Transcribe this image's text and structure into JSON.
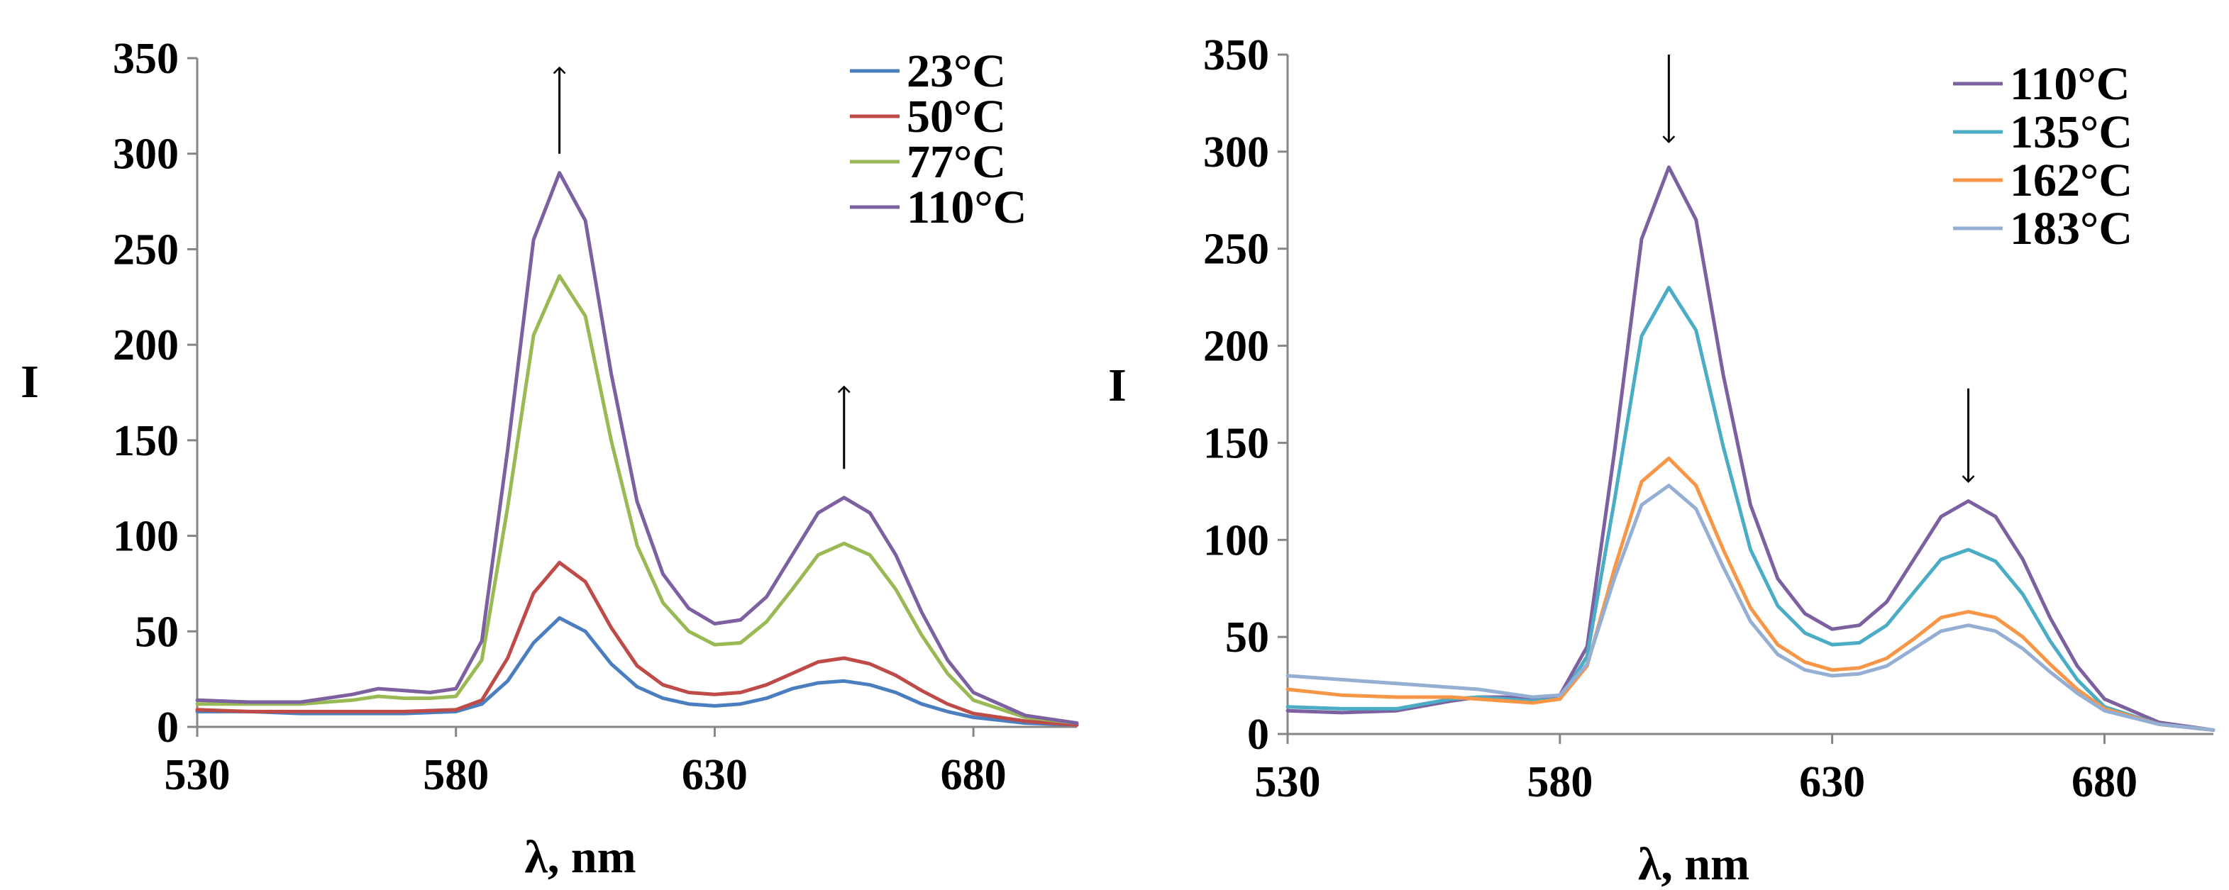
{
  "chart_data": [
    {
      "type": "line",
      "xlabel": "λ, nm",
      "ylabel": "I",
      "xlim": [
        530,
        700
      ],
      "ylim": [
        0,
        350
      ],
      "xticks": [
        530,
        580,
        630,
        680
      ],
      "yticks": [
        0,
        50,
        100,
        150,
        200,
        250,
        300,
        350
      ],
      "legend_position": "top-right",
      "arrow_direction": "up",
      "arrows": [
        {
          "x": 600,
          "y_from": 300,
          "y_to": 345
        },
        {
          "x": 655,
          "y_from": 135,
          "y_to": 178
        }
      ],
      "series": [
        {
          "name": "23°C",
          "color": "#4a7ebf",
          "x": [
            530,
            540,
            550,
            560,
            570,
            580,
            585,
            590,
            595,
            600,
            605,
            610,
            615,
            620,
            625,
            630,
            635,
            640,
            645,
            650,
            655,
            660,
            665,
            670,
            675,
            680,
            690,
            700
          ],
          "y": [
            8,
            8,
            7,
            7,
            7,
            8,
            12,
            24,
            44,
            57,
            50,
            33,
            21,
            15,
            12,
            11,
            12,
            15,
            20,
            23,
            24,
            22,
            18,
            12,
            8,
            5,
            2,
            1
          ]
        },
        {
          "name": "50°C",
          "color": "#be4b48",
          "x": [
            530,
            540,
            550,
            560,
            570,
            580,
            585,
            590,
            595,
            600,
            605,
            610,
            615,
            620,
            625,
            630,
            635,
            640,
            645,
            650,
            655,
            660,
            665,
            670,
            675,
            680,
            690,
            700
          ],
          "y": [
            9,
            8,
            8,
            8,
            8,
            9,
            14,
            36,
            70,
            86,
            76,
            52,
            32,
            22,
            18,
            17,
            18,
            22,
            28,
            34,
            36,
            33,
            27,
            19,
            12,
            7,
            3,
            1
          ]
        },
        {
          "name": "77°C",
          "color": "#98b954",
          "x": [
            530,
            540,
            550,
            560,
            565,
            570,
            575,
            580,
            585,
            590,
            595,
            600,
            605,
            610,
            615,
            620,
            625,
            630,
            635,
            640,
            645,
            650,
            655,
            660,
            665,
            670,
            675,
            680,
            690,
            700
          ],
          "y": [
            12,
            12,
            12,
            14,
            16,
            15,
            15,
            16,
            35,
            115,
            205,
            236,
            215,
            150,
            95,
            65,
            50,
            43,
            44,
            55,
            72,
            90,
            96,
            90,
            72,
            48,
            28,
            14,
            5,
            2
          ]
        },
        {
          "name": "110°C",
          "color": "#7d60a0",
          "x": [
            530,
            540,
            550,
            560,
            565,
            570,
            575,
            580,
            585,
            590,
            595,
            600,
            605,
            610,
            615,
            620,
            625,
            630,
            635,
            640,
            645,
            650,
            655,
            660,
            665,
            670,
            675,
            680,
            690,
            700
          ],
          "y": [
            14,
            13,
            13,
            17,
            20,
            19,
            18,
            20,
            45,
            145,
            255,
            290,
            265,
            185,
            118,
            80,
            62,
            54,
            56,
            68,
            90,
            112,
            120,
            112,
            90,
            60,
            35,
            18,
            6,
            2
          ]
        }
      ]
    },
    {
      "type": "line",
      "xlabel": "λ, nm",
      "ylabel": "I",
      "xlim": [
        530,
        700
      ],
      "ylim": [
        0,
        350
      ],
      "xticks": [
        530,
        580,
        630,
        680
      ],
      "yticks": [
        0,
        50,
        100,
        150,
        200,
        250,
        300,
        350
      ],
      "legend_position": "top-right",
      "arrow_direction": "down",
      "arrows": [
        {
          "x": 600,
          "y_from": 305,
          "y_to": 350
        },
        {
          "x": 655,
          "y_from": 130,
          "y_to": 178
        }
      ],
      "series": [
        {
          "name": "110°C",
          "color": "#7d60a0",
          "x": [
            530,
            540,
            550,
            560,
            565,
            570,
            575,
            580,
            585,
            590,
            595,
            600,
            605,
            610,
            615,
            620,
            625,
            630,
            635,
            640,
            645,
            650,
            655,
            660,
            665,
            670,
            675,
            680,
            690,
            700
          ],
          "y": [
            12,
            11,
            12,
            17,
            19,
            19,
            18,
            20,
            45,
            145,
            255,
            292,
            265,
            185,
            118,
            80,
            62,
            54,
            56,
            68,
            90,
            112,
            120,
            112,
            90,
            60,
            35,
            18,
            6,
            2
          ]
        },
        {
          "name": "135°C",
          "color": "#4aacc5",
          "x": [
            530,
            540,
            550,
            560,
            565,
            570,
            575,
            580,
            585,
            590,
            595,
            600,
            605,
            610,
            615,
            620,
            625,
            630,
            635,
            640,
            645,
            650,
            655,
            660,
            665,
            670,
            675,
            680,
            690,
            700
          ],
          "y": [
            14,
            13,
            13,
            18,
            19,
            18,
            17,
            18,
            40,
            120,
            205,
            230,
            208,
            148,
            95,
            66,
            52,
            46,
            47,
            56,
            73,
            90,
            95,
            89,
            72,
            48,
            28,
            14,
            5,
            2
          ]
        },
        {
          "name": "162°C",
          "color": "#f79646",
          "x": [
            530,
            540,
            550,
            560,
            565,
            570,
            575,
            580,
            585,
            590,
            595,
            600,
            605,
            610,
            615,
            620,
            625,
            630,
            635,
            640,
            645,
            650,
            655,
            660,
            665,
            670,
            675,
            680,
            690,
            700
          ],
          "y": [
            23,
            20,
            19,
            19,
            18,
            17,
            16,
            18,
            35,
            85,
            130,
            142,
            128,
            95,
            65,
            46,
            37,
            33,
            34,
            39,
            49,
            60,
            63,
            60,
            50,
            36,
            23,
            13,
            5,
            2
          ]
        },
        {
          "name": "183°C",
          "color": "#94aed4",
          "x": [
            530,
            540,
            550,
            560,
            565,
            570,
            575,
            580,
            585,
            590,
            595,
            600,
            605,
            610,
            615,
            620,
            625,
            630,
            635,
            640,
            645,
            650,
            655,
            660,
            665,
            670,
            675,
            680,
            690,
            700
          ],
          "y": [
            30,
            28,
            26,
            24,
            23,
            21,
            19,
            20,
            36,
            80,
            118,
            128,
            116,
            86,
            58,
            41,
            33,
            30,
            31,
            35,
            44,
            53,
            56,
            53,
            44,
            32,
            21,
            12,
            5,
            2
          ]
        }
      ]
    }
  ]
}
